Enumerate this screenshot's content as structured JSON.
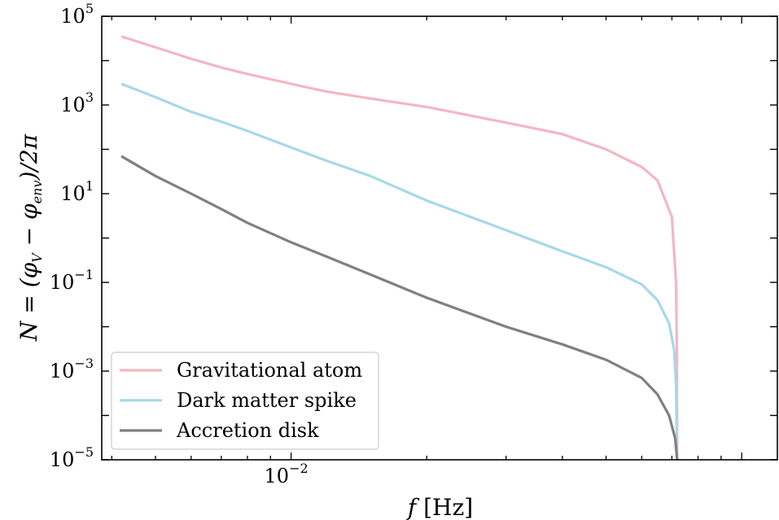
{
  "chart_data": {
    "type": "line",
    "xlabel": "f [Hz]",
    "ylabel": "N = (φ_V − φ_env)/2π",
    "xscale": "log",
    "yscale": "log",
    "xlim": [
      0.0038,
      0.12
    ],
    "ylim": [
      1e-05,
      100000.0
    ],
    "x_tick_labels": [
      {
        "value": 0.01,
        "base": "10",
        "exp": "−2"
      }
    ],
    "y_tick_labels": [
      {
        "value": 1e-05,
        "base": "10",
        "exp": "−5"
      },
      {
        "value": 0.001,
        "base": "10",
        "exp": "−3"
      },
      {
        "value": 0.1,
        "base": "10",
        "exp": "−1"
      },
      {
        "value": 10,
        "base": "10",
        "exp": "1"
      },
      {
        "value": 1000,
        "base": "10",
        "exp": "3"
      },
      {
        "value": 100000,
        "base": "10",
        "exp": "5"
      }
    ],
    "grid": false,
    "legend_position": "lower-left",
    "series": [
      {
        "name": "Gravitational atom",
        "color": "#f4b6c2",
        "points": [
          [
            0.0042,
            35000
          ],
          [
            0.005,
            20000
          ],
          [
            0.006,
            11000
          ],
          [
            0.007,
            7000
          ],
          [
            0.008,
            5000
          ],
          [
            0.01,
            3000
          ],
          [
            0.012,
            2000
          ],
          [
            0.015,
            1400
          ],
          [
            0.02,
            900
          ],
          [
            0.03,
            400
          ],
          [
            0.04,
            220
          ],
          [
            0.05,
            100
          ],
          [
            0.06,
            40
          ],
          [
            0.065,
            20
          ],
          [
            0.07,
            3
          ],
          [
            0.0715,
            0.1
          ],
          [
            0.0718,
            0.003
          ],
          [
            0.0719,
            1e-05
          ]
        ]
      },
      {
        "name": "Dark matter spike",
        "color": "#a8d8e6",
        "points": [
          [
            0.0042,
            3000
          ],
          [
            0.005,
            1500
          ],
          [
            0.006,
            700
          ],
          [
            0.007,
            420
          ],
          [
            0.008,
            260
          ],
          [
            0.01,
            110
          ],
          [
            0.012,
            55
          ],
          [
            0.015,
            25
          ],
          [
            0.02,
            7
          ],
          [
            0.03,
            1.5
          ],
          [
            0.04,
            0.5
          ],
          [
            0.05,
            0.22
          ],
          [
            0.06,
            0.09
          ],
          [
            0.065,
            0.04
          ],
          [
            0.069,
            0.012
          ],
          [
            0.0708,
            0.003
          ],
          [
            0.0715,
            0.0005
          ],
          [
            0.0719,
            1e-05
          ]
        ]
      },
      {
        "name": "Accretion disk",
        "color": "#808080",
        "points": [
          [
            0.0042,
            70
          ],
          [
            0.005,
            25
          ],
          [
            0.006,
            10
          ],
          [
            0.007,
            4.5
          ],
          [
            0.008,
            2.2
          ],
          [
            0.01,
            0.8
          ],
          [
            0.012,
            0.38
          ],
          [
            0.015,
            0.15
          ],
          [
            0.02,
            0.045
          ],
          [
            0.03,
            0.01
          ],
          [
            0.04,
            0.004
          ],
          [
            0.05,
            0.0018
          ],
          [
            0.06,
            0.0007
          ],
          [
            0.065,
            0.0003
          ],
          [
            0.069,
            0.0001
          ],
          [
            0.0712,
            3e-05
          ],
          [
            0.0719,
            1e-05
          ]
        ]
      }
    ]
  }
}
